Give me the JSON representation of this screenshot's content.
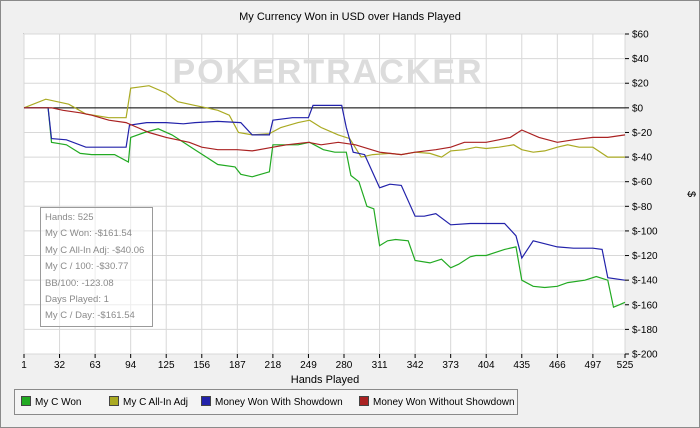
{
  "chart_data": {
    "type": "line",
    "title": "My Currency Won in USD over Hands Played",
    "xlabel": "Hands Played",
    "ylabel": "$",
    "watermark": "POKERTRACKER",
    "xlim": [
      1,
      525
    ],
    "ylim": [
      -200,
      60
    ],
    "x_ticks": [
      1,
      32,
      63,
      94,
      125,
      156,
      187,
      218,
      249,
      280,
      311,
      342,
      373,
      404,
      435,
      466,
      497,
      525
    ],
    "y_ticks": [
      60,
      40,
      20,
      0,
      -20,
      -40,
      -60,
      -80,
      -100,
      -120,
      -140,
      -160,
      -180,
      -200
    ],
    "y_tick_labels": [
      "$60",
      "$40",
      "$20",
      "$0",
      "$-20",
      "$-40",
      "$-60",
      "$-80",
      "$-100",
      "$-120",
      "$-140",
      "$-160",
      "$-180",
      "$-200"
    ],
    "grid": true,
    "legend_position": "bottom",
    "series": [
      {
        "name": "My C Won",
        "color": "#22aa22",
        "points": [
          [
            1,
            0
          ],
          [
            22,
            0
          ],
          [
            25,
            -28
          ],
          [
            38,
            -30
          ],
          [
            50,
            -37
          ],
          [
            60,
            -38
          ],
          [
            80,
            -38
          ],
          [
            92,
            -44
          ],
          [
            94,
            -24
          ],
          [
            106,
            -20
          ],
          [
            118,
            -17
          ],
          [
            130,
            -22
          ],
          [
            140,
            -28
          ],
          [
            150,
            -34
          ],
          [
            160,
            -40
          ],
          [
            170,
            -46
          ],
          [
            185,
            -48
          ],
          [
            190,
            -54
          ],
          [
            200,
            -56
          ],
          [
            215,
            -52
          ],
          [
            218,
            -30
          ],
          [
            240,
            -30
          ],
          [
            250,
            -28
          ],
          [
            262,
            -34
          ],
          [
            272,
            -36
          ],
          [
            282,
            -36
          ],
          [
            286,
            -55
          ],
          [
            293,
            -60
          ],
          [
            300,
            -80
          ],
          [
            306,
            -82
          ],
          [
            311,
            -112
          ],
          [
            318,
            -108
          ],
          [
            325,
            -107
          ],
          [
            336,
            -108
          ],
          [
            342,
            -124
          ],
          [
            355,
            -126
          ],
          [
            365,
            -123
          ],
          [
            373,
            -130
          ],
          [
            380,
            -127
          ],
          [
            390,
            -121
          ],
          [
            395,
            -120
          ],
          [
            404,
            -120
          ],
          [
            420,
            -115
          ],
          [
            430,
            -113
          ],
          [
            435,
            -140
          ],
          [
            445,
            -145
          ],
          [
            455,
            -146
          ],
          [
            466,
            -145
          ],
          [
            475,
            -142
          ],
          [
            490,
            -140
          ],
          [
            500,
            -137
          ],
          [
            510,
            -140
          ],
          [
            515,
            -162
          ],
          [
            520,
            -160
          ],
          [
            525,
            -158
          ]
        ]
      },
      {
        "name": "My C All-In Adj",
        "color": "#aaaa22",
        "points": [
          [
            1,
            0
          ],
          [
            20,
            7
          ],
          [
            40,
            3
          ],
          [
            55,
            -5
          ],
          [
            75,
            -8
          ],
          [
            90,
            -8
          ],
          [
            94,
            16
          ],
          [
            110,
            18
          ],
          [
            125,
            12
          ],
          [
            135,
            5
          ],
          [
            150,
            2
          ],
          [
            160,
            0
          ],
          [
            170,
            -2
          ],
          [
            180,
            -6
          ],
          [
            188,
            -20
          ],
          [
            200,
            -22
          ],
          [
            215,
            -21
          ],
          [
            225,
            -16
          ],
          [
            240,
            -12
          ],
          [
            250,
            -10
          ],
          [
            260,
            -16
          ],
          [
            275,
            -22
          ],
          [
            285,
            -25
          ],
          [
            295,
            -40
          ],
          [
            305,
            -38
          ],
          [
            320,
            -37
          ],
          [
            330,
            -38
          ],
          [
            342,
            -36
          ],
          [
            355,
            -37
          ],
          [
            365,
            -40
          ],
          [
            373,
            -35
          ],
          [
            385,
            -34
          ],
          [
            395,
            -32
          ],
          [
            404,
            -33
          ],
          [
            415,
            -32
          ],
          [
            428,
            -30
          ],
          [
            435,
            -34
          ],
          [
            445,
            -36
          ],
          [
            455,
            -35
          ],
          [
            466,
            -32
          ],
          [
            475,
            -30
          ],
          [
            485,
            -32
          ],
          [
            497,
            -32
          ],
          [
            510,
            -40
          ],
          [
            525,
            -40
          ]
        ]
      },
      {
        "name": "Money Won With Showdown",
        "color": "#2222aa",
        "points": [
          [
            1,
            0
          ],
          [
            22,
            0
          ],
          [
            25,
            -25
          ],
          [
            38,
            -26
          ],
          [
            55,
            -32
          ],
          [
            90,
            -32
          ],
          [
            93,
            -14
          ],
          [
            108,
            -12
          ],
          [
            125,
            -12
          ],
          [
            140,
            -13
          ],
          [
            150,
            -12
          ],
          [
            170,
            -11
          ],
          [
            190,
            -12
          ],
          [
            200,
            -22
          ],
          [
            215,
            -22
          ],
          [
            218,
            -10
          ],
          [
            235,
            -8
          ],
          [
            249,
            -8
          ],
          [
            253,
            2
          ],
          [
            270,
            2
          ],
          [
            278,
            2
          ],
          [
            282,
            -16
          ],
          [
            288,
            -36
          ],
          [
            298,
            -38
          ],
          [
            311,
            -65
          ],
          [
            320,
            -62
          ],
          [
            330,
            -63
          ],
          [
            342,
            -88
          ],
          [
            350,
            -88
          ],
          [
            360,
            -86
          ],
          [
            373,
            -95
          ],
          [
            390,
            -94
          ],
          [
            404,
            -94
          ],
          [
            420,
            -94
          ],
          [
            430,
            -104
          ],
          [
            435,
            -122
          ],
          [
            445,
            -108
          ],
          [
            466,
            -113
          ],
          [
            480,
            -114
          ],
          [
            497,
            -114
          ],
          [
            505,
            -115
          ],
          [
            510,
            -138
          ],
          [
            525,
            -140
          ]
        ]
      },
      {
        "name": "Money Won Without Showdown",
        "color": "#aa2222",
        "points": [
          [
            1,
            0
          ],
          [
            25,
            0
          ],
          [
            35,
            -2
          ],
          [
            50,
            -4
          ],
          [
            60,
            -6
          ],
          [
            75,
            -10
          ],
          [
            90,
            -12
          ],
          [
            100,
            -16
          ],
          [
            110,
            -20
          ],
          [
            125,
            -24
          ],
          [
            145,
            -28
          ],
          [
            156,
            -32
          ],
          [
            170,
            -34
          ],
          [
            187,
            -34
          ],
          [
            200,
            -35
          ],
          [
            218,
            -32
          ],
          [
            230,
            -30
          ],
          [
            249,
            -28
          ],
          [
            260,
            -30
          ],
          [
            275,
            -28
          ],
          [
            290,
            -30
          ],
          [
            311,
            -36
          ],
          [
            330,
            -38
          ],
          [
            342,
            -36
          ],
          [
            360,
            -34
          ],
          [
            373,
            -32
          ],
          [
            385,
            -28
          ],
          [
            404,
            -28
          ],
          [
            415,
            -26
          ],
          [
            425,
            -24
          ],
          [
            435,
            -18
          ],
          [
            450,
            -24
          ],
          [
            466,
            -28
          ],
          [
            480,
            -26
          ],
          [
            497,
            -24
          ],
          [
            510,
            -24
          ],
          [
            525,
            -22
          ]
        ]
      }
    ]
  },
  "stats": {
    "hands": "Hands: 525",
    "won": "My C Won: -$161.54",
    "allin_adj": "My C All-In Adj: -$40.06",
    "per_100": "My C / 100: -$30.77",
    "bb_100": "BB/100: -123.08",
    "days": "Days Played: 1",
    "per_day": "My C / Day: -$161.54"
  }
}
